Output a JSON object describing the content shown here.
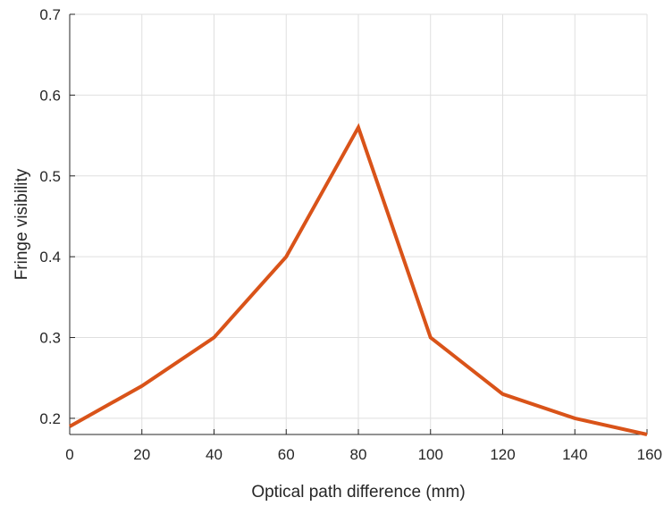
{
  "chart_data": {
    "type": "line",
    "title": "",
    "xlabel": "Optical path difference (mm)",
    "ylabel": "Fringe visibility",
    "xlim": [
      0,
      160
    ],
    "ylim": [
      0.18,
      0.7
    ],
    "xticks": [
      "0",
      "20",
      "40",
      "60",
      "80",
      "100",
      "120",
      "140",
      "160"
    ],
    "yticks": [
      "0.2",
      "0.3",
      "0.4",
      "0.5",
      "0.6",
      "0.7"
    ],
    "grid": true,
    "series": [
      {
        "color": "#d95319",
        "x": [
          0,
          20,
          40,
          60,
          80,
          100,
          120,
          140,
          160
        ],
        "y": [
          0.19,
          0.24,
          0.3,
          0.4,
          0.56,
          0.3,
          0.23,
          0.2,
          0.18
        ]
      }
    ]
  }
}
